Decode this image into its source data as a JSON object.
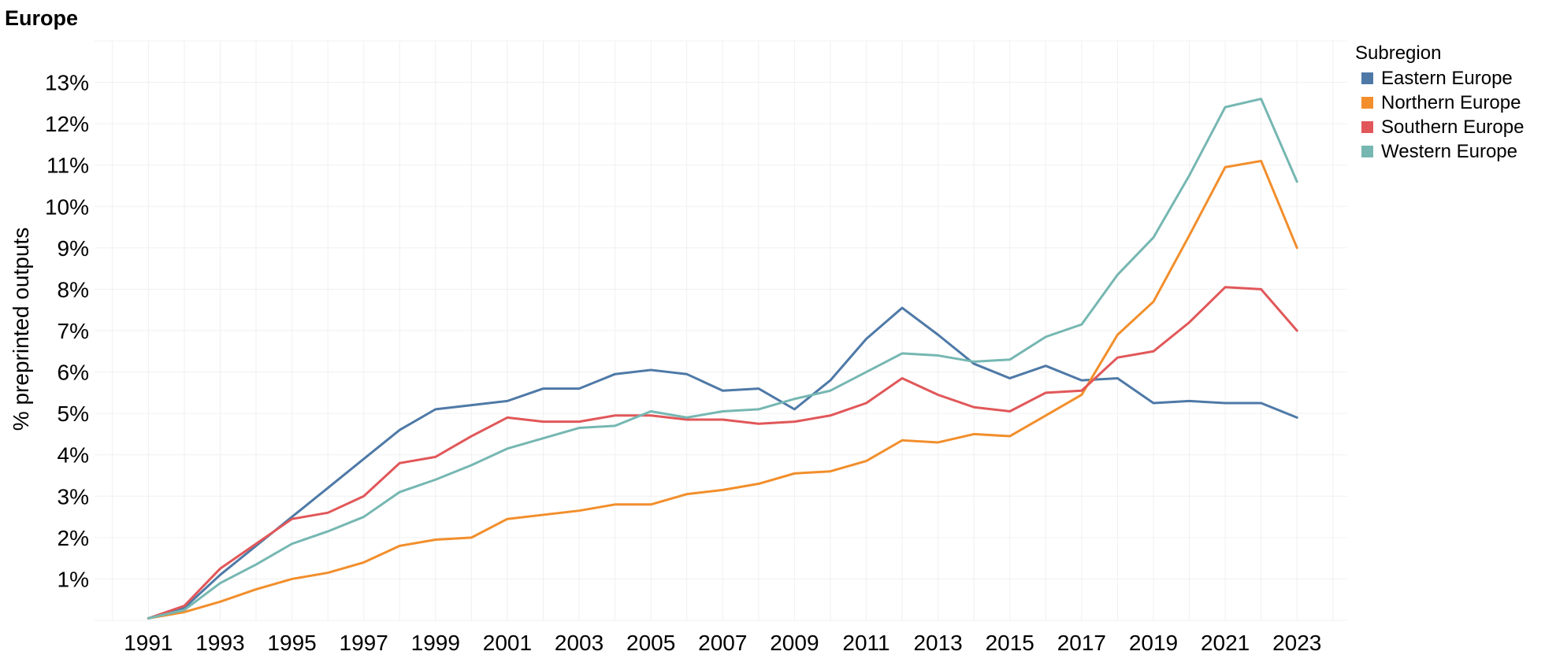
{
  "chart_data": {
    "type": "line",
    "title": "Europe",
    "xlabel": "",
    "ylabel": "% preprinted outputs",
    "xlim": [
      1991,
      2023
    ],
    "ylim": [
      0,
      14
    ],
    "x_ticks": [
      "1991",
      "1993",
      "1995",
      "1997",
      "1999",
      "2001",
      "2003",
      "2005",
      "2007",
      "2009",
      "2011",
      "2013",
      "2015",
      "2017",
      "2019",
      "2021",
      "2023"
    ],
    "y_ticks": [
      "1%",
      "2%",
      "3%",
      "4%",
      "5%",
      "6%",
      "7%",
      "8%",
      "9%",
      "10%",
      "11%",
      "12%",
      "13%"
    ],
    "legend_title": "Subregion",
    "legend_position": "right",
    "grid": true,
    "x": [
      1991,
      1992,
      1993,
      1994,
      1995,
      1996,
      1997,
      1998,
      1999,
      2000,
      2001,
      2002,
      2003,
      2004,
      2005,
      2006,
      2007,
      2008,
      2009,
      2010,
      2011,
      2012,
      2013,
      2014,
      2015,
      2016,
      2017,
      2018,
      2019,
      2020,
      2021,
      2022,
      2023
    ],
    "series": [
      {
        "name": "Eastern Europe",
        "color": "#4e79a7",
        "values": [
          0.05,
          0.3,
          1.1,
          1.8,
          2.5,
          3.2,
          3.9,
          4.6,
          5.1,
          5.2,
          5.3,
          5.6,
          5.6,
          5.95,
          6.05,
          5.95,
          5.55,
          5.6,
          5.1,
          5.8,
          6.8,
          7.55,
          6.9,
          6.2,
          5.85,
          6.15,
          5.8,
          5.85,
          5.25,
          5.3,
          5.25,
          5.25,
          4.9
        ]
      },
      {
        "name": "Northern Europe",
        "color": "#f28e2b",
        "values": [
          0.05,
          0.2,
          0.45,
          0.75,
          1.0,
          1.15,
          1.4,
          1.8,
          1.95,
          2.0,
          2.45,
          2.55,
          2.65,
          2.8,
          2.8,
          3.05,
          3.15,
          3.3,
          3.55,
          3.6,
          3.85,
          4.35,
          4.3,
          4.5,
          4.45,
          4.95,
          5.45,
          6.9,
          7.7,
          9.3,
          10.95,
          11.1,
          9.0
        ]
      },
      {
        "name": "Southern Europe",
        "color": "#e15759",
        "values": [
          0.05,
          0.35,
          1.25,
          1.85,
          2.45,
          2.6,
          3.0,
          3.8,
          3.95,
          4.45,
          4.9,
          4.8,
          4.8,
          4.95,
          4.95,
          4.85,
          4.85,
          4.75,
          4.8,
          4.95,
          5.25,
          5.85,
          5.45,
          5.15,
          5.05,
          5.5,
          5.55,
          6.35,
          6.5,
          7.2,
          8.05,
          8.0,
          7.0
        ]
      },
      {
        "name": "Western Europe",
        "color": "#76b7b2",
        "values": [
          0.05,
          0.25,
          0.9,
          1.35,
          1.85,
          2.15,
          2.5,
          3.1,
          3.4,
          3.75,
          4.15,
          4.4,
          4.65,
          4.7,
          5.05,
          4.9,
          5.05,
          5.1,
          5.35,
          5.55,
          6.0,
          6.45,
          6.4,
          6.25,
          6.3,
          6.85,
          7.15,
          8.35,
          9.25,
          10.75,
          12.4,
          12.6,
          10.6
        ]
      }
    ]
  }
}
